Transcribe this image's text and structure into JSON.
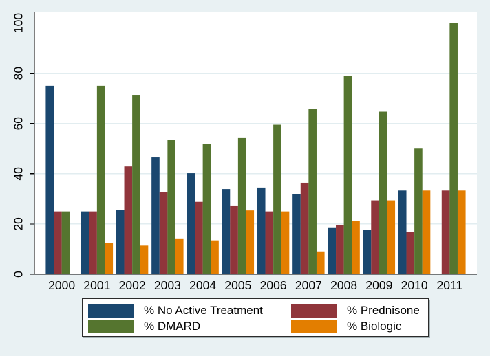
{
  "chart_data": {
    "type": "bar",
    "title": "",
    "xlabel": "",
    "ylabel": "",
    "categories": [
      "2000",
      "2001",
      "2002",
      "2003",
      "2004",
      "2005",
      "2006",
      "2007",
      "2008",
      "2009",
      "2010",
      "2011"
    ],
    "series": [
      {
        "name": "% No Active Treatment",
        "color": "#1a476f",
        "values": [
          75,
          25,
          25.7,
          46.5,
          40.2,
          33.9,
          34.5,
          31.8,
          18.4,
          17.6,
          33.3,
          0
        ]
      },
      {
        "name": "% Prednisone",
        "color": "#90353b",
        "values": [
          25,
          25,
          42.9,
          32.6,
          28.8,
          27.1,
          25,
          36.4,
          19.7,
          29.4,
          16.7,
          33.3
        ]
      },
      {
        "name": "% DMARD",
        "color": "#55752f",
        "values": [
          25,
          75,
          71.4,
          53.5,
          51.9,
          54.2,
          59.5,
          65.9,
          78.9,
          64.7,
          50,
          100
        ]
      },
      {
        "name": "% Biologic",
        "color": "#e37e00",
        "values": [
          0,
          12.5,
          11.4,
          14,
          13.5,
          25.4,
          25,
          9.1,
          21.1,
          29.4,
          33.3,
          33.3
        ]
      }
    ],
    "ylim": [
      0,
      100
    ],
    "yticks": [
      "0",
      "20",
      "40",
      "60",
      "80",
      "100"
    ],
    "grid": true,
    "legend_position": "bottom"
  },
  "colors": {
    "figure_background": "#e9f1f3",
    "plot_background": "#ffffff",
    "gridline": "#e2edf0",
    "axis": "#000000",
    "tick_text": "#000000"
  }
}
